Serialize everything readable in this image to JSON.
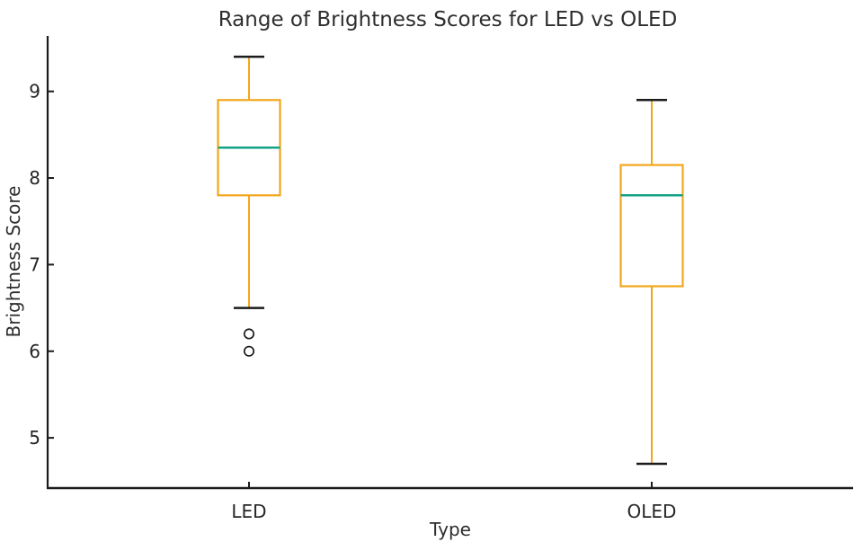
{
  "page": {
    "background": "#ffffff"
  },
  "chart_data": {
    "type": "boxplot",
    "title": "Range of Brightness Scores for LED vs OLED",
    "xlabel": "Type",
    "ylabel": "Brightness Score",
    "categories": [
      "LED",
      "OLED"
    ],
    "yticks": [
      5,
      6,
      7,
      8,
      9
    ],
    "ylim": [
      4.42,
      9.64
    ],
    "grid": false,
    "legend_position": "none",
    "series": [
      {
        "name": "LED",
        "whisker_low": 6.5,
        "q1": 7.8,
        "median": 8.35,
        "q3": 8.9,
        "whisker_high": 9.4,
        "outliers": [
          6.2,
          6.0
        ]
      },
      {
        "name": "OLED",
        "whisker_low": 4.7,
        "q1": 6.75,
        "median": 7.8,
        "q3": 8.15,
        "whisker_high": 8.9,
        "outliers": []
      }
    ],
    "colors": {
      "box_edge": "#F2A71B",
      "whisker": "#F2A71B",
      "median": "#15A287",
      "cap": "#1C1C1C",
      "outlier": "#1C1C1C",
      "spine": "#1C1C1C",
      "text": "#262626",
      "background": "#FFFFFF"
    }
  }
}
